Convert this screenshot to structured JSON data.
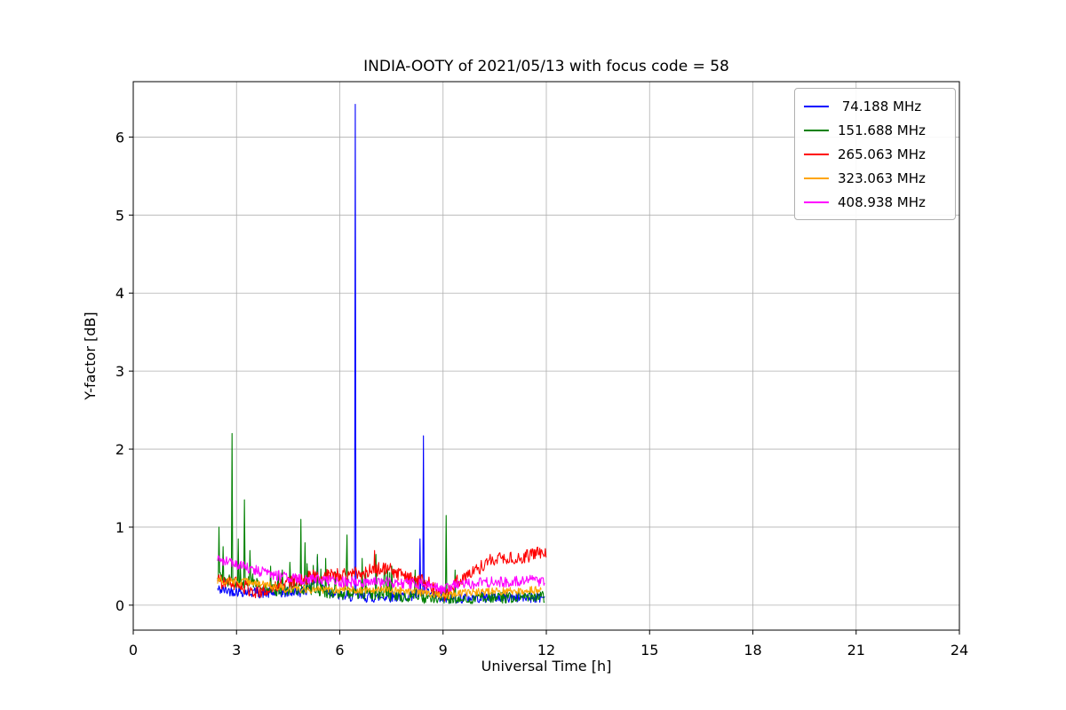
{
  "chart_data": {
    "type": "line",
    "title": "INDIA-OOTY of 2021/05/13 with focus code = 58",
    "xlabel": "Universal Time [h]",
    "ylabel": "Y-factor [dB]",
    "xlim": [
      0,
      24
    ],
    "ylim": [
      -0.32,
      6.71
    ],
    "xticks": [
      0,
      3,
      6,
      9,
      12,
      15,
      18,
      21,
      24
    ],
    "yticks": [
      0,
      1,
      2,
      3,
      4,
      5,
      6
    ],
    "grid": true,
    "grid_color": "#b0b0b0",
    "legend_position": "upper right",
    "step": 0.02,
    "seed": 42,
    "series": [
      {
        "name": "74.188 MHz",
        "label": " 74.188 MHz",
        "color": "#0000ff",
        "x_start": 2.45,
        "x_end": 11.95,
        "noise": 0.07,
        "baseline": [
          [
            2.45,
            0.2
          ],
          [
            3.0,
            0.18
          ],
          [
            4.0,
            0.15
          ],
          [
            5.0,
            0.18
          ],
          [
            5.3,
            0.35
          ],
          [
            5.6,
            0.2
          ],
          [
            6.0,
            0.12
          ],
          [
            7.0,
            0.1
          ],
          [
            8.0,
            0.12
          ],
          [
            8.5,
            0.15
          ],
          [
            9.0,
            0.08
          ],
          [
            10.0,
            0.1
          ],
          [
            11.0,
            0.1
          ],
          [
            11.95,
            0.1
          ]
        ],
        "spikes": [
          [
            6.45,
            6.42
          ],
          [
            8.42,
            2.17
          ],
          [
            8.32,
            0.85
          ],
          [
            5.35,
            0.62
          ]
        ]
      },
      {
        "name": "151.688 MHz",
        "label": "151.688 MHz",
        "color": "#008000",
        "x_start": 2.45,
        "x_end": 11.95,
        "noise": 0.08,
        "burst": {
          "p": 0.1,
          "max": 0.35,
          "range": [
            2.45,
            7.5
          ]
        },
        "baseline": [
          [
            2.45,
            0.35
          ],
          [
            3.0,
            0.3
          ],
          [
            3.5,
            0.28
          ],
          [
            4.0,
            0.2
          ],
          [
            4.5,
            0.2
          ],
          [
            5.0,
            0.22
          ],
          [
            5.5,
            0.18
          ],
          [
            6.0,
            0.15
          ],
          [
            6.5,
            0.15
          ],
          [
            7.0,
            0.15
          ],
          [
            7.5,
            0.12
          ],
          [
            8.0,
            0.12
          ],
          [
            8.5,
            0.1
          ],
          [
            9.0,
            0.1
          ],
          [
            9.5,
            0.1
          ],
          [
            10.5,
            0.1
          ],
          [
            11.95,
            0.1
          ]
        ],
        "spikes": [
          [
            2.5,
            1.0
          ],
          [
            2.62,
            0.75
          ],
          [
            2.87,
            2.2
          ],
          [
            3.05,
            0.85
          ],
          [
            3.22,
            1.35
          ],
          [
            3.4,
            0.7
          ],
          [
            4.0,
            0.5
          ],
          [
            4.55,
            0.55
          ],
          [
            4.87,
            1.1
          ],
          [
            5.0,
            0.8
          ],
          [
            5.35,
            0.65
          ],
          [
            5.6,
            0.6
          ],
          [
            6.2,
            0.9
          ],
          [
            6.65,
            0.6
          ],
          [
            7.05,
            0.65
          ],
          [
            7.5,
            0.5
          ],
          [
            8.2,
            0.45
          ],
          [
            9.1,
            1.15
          ],
          [
            9.35,
            0.45
          ]
        ]
      },
      {
        "name": "265.063 MHz",
        "label": "265.063 MHz",
        "color": "#ff0000",
        "x_start": 2.45,
        "x_end": 12.0,
        "noise": 0.09,
        "baseline": [
          [
            2.45,
            0.3
          ],
          [
            3.0,
            0.28
          ],
          [
            3.5,
            0.18
          ],
          [
            4.0,
            0.2
          ],
          [
            4.5,
            0.28
          ],
          [
            5.0,
            0.35
          ],
          [
            5.5,
            0.38
          ],
          [
            6.0,
            0.38
          ],
          [
            6.5,
            0.4
          ],
          [
            7.0,
            0.45
          ],
          [
            7.3,
            0.48
          ],
          [
            7.6,
            0.42
          ],
          [
            8.0,
            0.33
          ],
          [
            8.5,
            0.3
          ],
          [
            8.9,
            0.18
          ],
          [
            9.1,
            0.12
          ],
          [
            9.4,
            0.3
          ],
          [
            9.7,
            0.38
          ],
          [
            10.0,
            0.45
          ],
          [
            10.3,
            0.55
          ],
          [
            10.6,
            0.6
          ],
          [
            11.0,
            0.62
          ],
          [
            11.3,
            0.6
          ],
          [
            11.6,
            0.66
          ],
          [
            12.0,
            0.65
          ]
        ],
        "spikes": [
          [
            7.0,
            0.7
          ]
        ]
      },
      {
        "name": "323.063 MHz",
        "label": "323.063 MHz",
        "color": "#ffa500",
        "x_start": 2.45,
        "x_end": 11.85,
        "noise": 0.05,
        "baseline": [
          [
            2.45,
            0.32
          ],
          [
            3.0,
            0.3
          ],
          [
            3.5,
            0.3
          ],
          [
            4.0,
            0.25
          ],
          [
            4.5,
            0.2
          ],
          [
            5.0,
            0.2
          ],
          [
            6.0,
            0.2
          ],
          [
            7.0,
            0.2
          ],
          [
            8.0,
            0.18
          ],
          [
            9.0,
            0.12
          ],
          [
            9.5,
            0.15
          ],
          [
            10.0,
            0.17
          ],
          [
            11.0,
            0.18
          ],
          [
            11.85,
            0.2
          ]
        ],
        "spikes": []
      },
      {
        "name": "408.938 MHz",
        "label": "408.938 MHz",
        "color": "#ff00ff",
        "x_start": 2.45,
        "x_end": 11.95,
        "noise": 0.07,
        "baseline": [
          [
            2.45,
            0.58
          ],
          [
            3.0,
            0.52
          ],
          [
            3.5,
            0.45
          ],
          [
            4.0,
            0.4
          ],
          [
            4.5,
            0.35
          ],
          [
            5.0,
            0.33
          ],
          [
            5.5,
            0.32
          ],
          [
            6.0,
            0.3
          ],
          [
            7.0,
            0.3
          ],
          [
            8.0,
            0.28
          ],
          [
            8.7,
            0.25
          ],
          [
            9.0,
            0.2
          ],
          [
            9.3,
            0.25
          ],
          [
            10.0,
            0.28
          ],
          [
            10.5,
            0.3
          ],
          [
            11.0,
            0.3
          ],
          [
            11.5,
            0.32
          ],
          [
            11.95,
            0.3
          ]
        ],
        "spikes": []
      }
    ]
  }
}
